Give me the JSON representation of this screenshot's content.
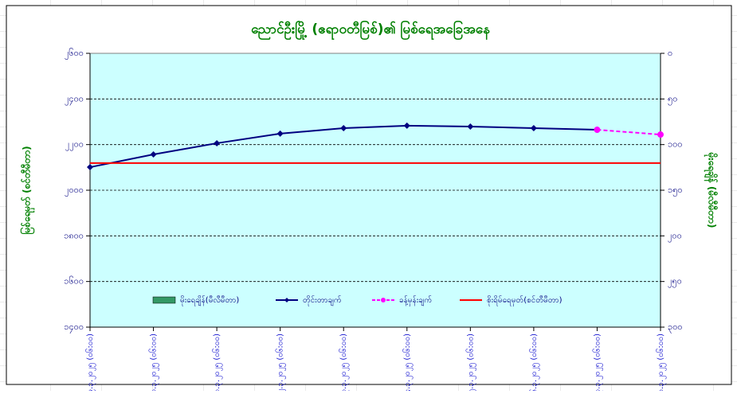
{
  "chart_data": {
    "type": "line",
    "title": "ညောင်ဦးမြို့ (ဧရာဝတီမြစ်)၏ မြစ်ရေအခြေအနေ",
    "ylabel": "မြစ်ရေမှတ် (စင်တီမီတာ)",
    "y2label": "မိုးရေချိန် (မီလီမီတာ)",
    "categories": [
      "၉.၃.၂၀၂၅ (၀၆:၀၀)",
      "၁၀.၃.၂၀၂၅ (၀၆:၀၀)",
      "၁၁.၃.၂၀၂၅ (၀၆:၀၀)",
      "၁၂.၃.၂၀၂၅ (၀၆:၀၀)",
      "၁၃.၃.၂၀၂၅ (၀၆:၀၀)",
      "၁၄.၃.၂၀၂၅ (၀၆:၀၀)",
      "၁၅.၃.၂၀၂၅ (၀၆:၀၀)",
      "၁၆.၃.၂၀၂၅ (၀၆:၀၀)",
      "၁၇.၃.၂၀၂၅ (၀၆:၀၀)",
      "၁၈.၃.၂၀၂၅ (၀၆:၀၀)"
    ],
    "ylim": [
      1400,
      2600
    ],
    "yticks": [
      {
        "value": 1400,
        "label": "၁၄၀၀"
      },
      {
        "value": 1600,
        "label": "၁၆၀၀"
      },
      {
        "value": 1800,
        "label": "၁၈၀၀"
      },
      {
        "value": 2000,
        "label": "၂၀၀၀"
      },
      {
        "value": 2200,
        "label": "၂၂၀၀"
      },
      {
        "value": 2400,
        "label": "၂၄၀၀"
      },
      {
        "value": 2600,
        "label": "၂၆၀၀"
      }
    ],
    "y2lim": [
      300,
      0
    ],
    "y2ticks": [
      {
        "value": 300,
        "label": "၃၀၀"
      },
      {
        "value": 250,
        "label": "၂၅၀"
      },
      {
        "value": 200,
        "label": "၂၀၀"
      },
      {
        "value": 150,
        "label": "၁၅၀"
      },
      {
        "value": 100,
        "label": "၁၀၀"
      },
      {
        "value": 50,
        "label": "၅၀"
      },
      {
        "value": 0,
        "label": "၀"
      }
    ],
    "grid": true,
    "series": [
      {
        "name": "မိုးရေချိန်(မီလီမီတာ)",
        "kind": "bar",
        "axis": "y2",
        "color": "#339966",
        "values": [
          0,
          0,
          0,
          0,
          0,
          0,
          0,
          0,
          0,
          0
        ]
      },
      {
        "name": "တိုင်းတာချက်",
        "kind": "line",
        "color": "#000080",
        "values": [
          2101,
          2157,
          2206,
          2248,
          2272,
          2283,
          2279,
          2272,
          2265,
          null
        ]
      },
      {
        "name": "ခန့်မှန်းချက်",
        "kind": "dashed",
        "color": "#ff00ff",
        "values": [
          null,
          null,
          null,
          null,
          null,
          null,
          null,
          null,
          2265,
          2244
        ]
      },
      {
        "name": "စိုးရိမ်ရေမှတ်(စင်တီမီတာ)",
        "kind": "hline",
        "color": "#ff0000",
        "value": 2119
      }
    ]
  }
}
